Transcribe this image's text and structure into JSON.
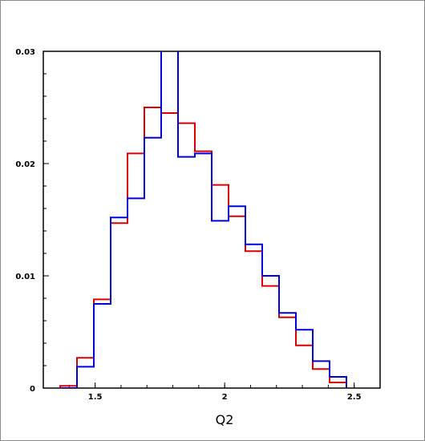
{
  "chart_data": {
    "type": "histogram-step",
    "xlabel": "Q2",
    "ylabel": "",
    "xlim": [
      1.3,
      2.6
    ],
    "ylim": [
      0,
      0.03
    ],
    "x_ticks": [
      {
        "value": 1.5,
        "label": "1.5"
      },
      {
        "value": 2.0,
        "label": "2"
      },
      {
        "value": 2.5,
        "label": "2.5"
      }
    ],
    "y_ticks": [
      {
        "value": 0,
        "label": "0"
      },
      {
        "value": 0.01,
        "label": "0.01"
      },
      {
        "value": 0.02,
        "label": "0.02"
      },
      {
        "value": 0.03,
        "label": "0.03"
      }
    ],
    "bin_edges": [
      1.365,
      1.43,
      1.495,
      1.56,
      1.625,
      1.69,
      1.755,
      1.82,
      1.885,
      1.95,
      2.015,
      2.08,
      2.145,
      2.21,
      2.275,
      2.34,
      2.405,
      2.47
    ],
    "series": [
      {
        "color": "#dd0000",
        "values": [
          0.0002,
          0.0027,
          0.0079,
          0.0147,
          0.0209,
          0.025,
          0.0245,
          0.0236,
          0.0211,
          0.0181,
          0.0153,
          0.0122,
          0.0091,
          0.0063,
          0.0038,
          0.0017,
          0.0005
        ]
      },
      {
        "color": "#0000dd",
        "values": [
          0.0,
          0.0019,
          0.0075,
          0.0152,
          0.0169,
          0.0223,
          0.031,
          0.0206,
          0.0209,
          0.0149,
          0.0162,
          0.0128,
          0.01,
          0.0067,
          0.0052,
          0.0024,
          0.001
        ]
      }
    ]
  }
}
